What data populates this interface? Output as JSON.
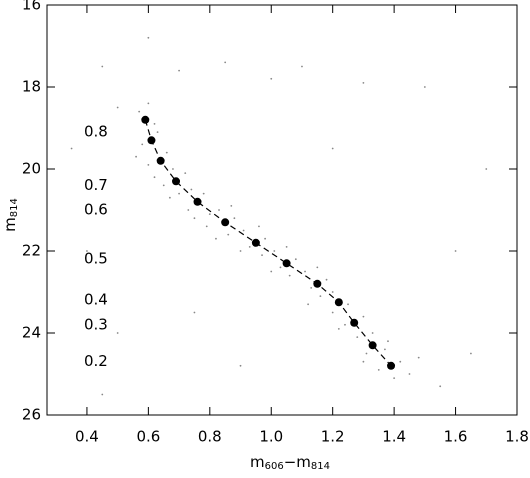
{
  "chart_data": {
    "type": "scatter",
    "xlabel": [
      "m",
      "606",
      "−m",
      "814"
    ],
    "ylabel": [
      "m",
      "814"
    ],
    "xlim": [
      0.27,
      1.8
    ],
    "ylim": [
      26,
      16
    ],
    "xticks": [
      0.4,
      0.6,
      0.8,
      {
        "value": 1.0,
        "label": "1.0"
      },
      1.2,
      1.4,
      1.6,
      1.8
    ],
    "yticks": [
      16,
      18,
      20,
      22,
      24,
      26
    ],
    "mass_ticks": [
      {
        "value": 19.1,
        "label": "0.8"
      },
      {
        "value": 20.4,
        "label": "0.7"
      },
      {
        "value": 21.0,
        "label": "0.6"
      },
      {
        "value": 22.2,
        "label": "0.5"
      },
      {
        "value": 23.2,
        "label": "0.4"
      },
      {
        "value": 23.8,
        "label": "0.3"
      },
      {
        "value": 24.7,
        "label": "0.2"
      }
    ],
    "series": [
      {
        "color": "#888888",
        "x": [
          0.57,
          0.6,
          0.62,
          0.58,
          0.63,
          0.66,
          0.6,
          0.68,
          0.65,
          0.72,
          0.7,
          0.74,
          0.78,
          0.73,
          0.8,
          0.83,
          0.79,
          0.88,
          0.86,
          0.91,
          0.93,
          0.98,
          0.97,
          1.01,
          1.03,
          1.08,
          1.06,
          1.11,
          1.13,
          1.18,
          1.16,
          1.2,
          1.2,
          1.25,
          1.24,
          1.3,
          1.28,
          1.33,
          1.31,
          1.37,
          1.35,
          1.42,
          1.4,
          1.45,
          1.3,
          1.38,
          1.22,
          1.12,
          1.0,
          0.9,
          0.82,
          0.75,
          0.67,
          0.62,
          0.56,
          1.48,
          1.15,
          1.05,
          0.96,
          0.87,
          0.45,
          0.7,
          0.85,
          1.0,
          1.1,
          1.3,
          0.5,
          0.4,
          0.5,
          0.45,
          1.6,
          1.7,
          1.5,
          0.35,
          1.65,
          0.9,
          0.75,
          1.55,
          0.6,
          1.2
        ],
        "values": [
          18.6,
          18.4,
          18.9,
          19.4,
          19.1,
          19.6,
          19.9,
          20.0,
          20.4,
          20.1,
          20.6,
          20.5,
          20.6,
          21.0,
          21.1,
          21.0,
          21.4,
          21.2,
          21.6,
          21.5,
          21.9,
          21.7,
          22.1,
          22.0,
          22.4,
          22.2,
          22.6,
          22.5,
          22.9,
          22.7,
          23.1,
          23.0,
          23.5,
          23.3,
          23.8,
          23.6,
          24.1,
          24.0,
          24.5,
          24.4,
          24.9,
          24.7,
          25.1,
          25.0,
          24.7,
          24.2,
          23.9,
          23.3,
          22.5,
          22.0,
          21.7,
          21.2,
          20.7,
          20.2,
          19.7,
          24.6,
          22.4,
          21.9,
          21.4,
          20.9,
          17.5,
          17.6,
          17.4,
          17.8,
          17.5,
          17.9,
          18.5,
          22.0,
          24.0,
          25.5,
          22.0,
          20.0,
          18.0,
          19.5,
          24.5,
          24.8,
          23.5,
          25.3,
          16.8,
          19.5
        ]
      },
      {
        "color": "#000000",
        "x": [
          0.59,
          0.61,
          0.64,
          0.69,
          0.76,
          0.85,
          0.95,
          1.05,
          1.15,
          1.22,
          1.27,
          1.33,
          1.39
        ],
        "values": [
          18.8,
          19.3,
          19.8,
          20.3,
          20.8,
          21.3,
          21.8,
          22.3,
          22.8,
          23.25,
          23.75,
          24.3,
          24.8
        ]
      }
    ]
  }
}
